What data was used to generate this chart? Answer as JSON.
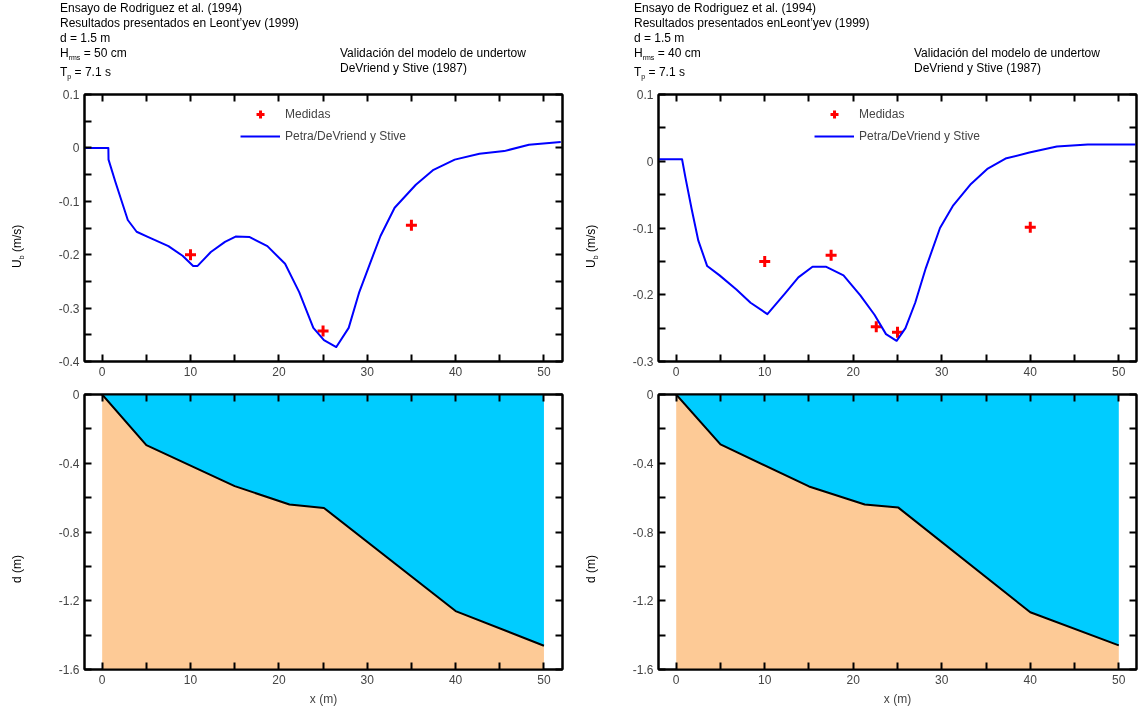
{
  "chart_data": [
    {
      "type": "line",
      "title": "Validación del modelo de undertow\nDeVriend y Stive (1987)",
      "annotations": [
        "Ensayo de Rodriguez et al. (1994)",
        "Resultados presentados en Leont’yev (1999)",
        "d = 1.5 m",
        "H$_{rms}$ = 50 cm",
        "T$_{p}$ = 7.1 s"
      ],
      "ylabel": "U$_{b}$ (m/s)",
      "legend": "top",
      "xlim": [
        -2,
        52.1
      ],
      "ylim": [
        -0.4,
        0.1
      ],
      "xticks": [
        0,
        {
          "value": 5,
          "label": null
        },
        10,
        {
          "value": 15,
          "label": null
        },
        20,
        {
          "value": 25,
          "label": null
        },
        30,
        {
          "value": 35,
          "label": null
        },
        40,
        {
          "value": 45,
          "label": null
        },
        50
      ],
      "yticks": [
        0.1,
        {
          "value": 0.05,
          "label": null
        },
        0,
        {
          "value": -0.05,
          "label": null
        },
        -0.1,
        {
          "value": -0.15,
          "label": null
        },
        -0.2,
        {
          "value": -0.25,
          "label": null
        },
        -0.3,
        {
          "value": -0.35,
          "label": null
        },
        -0.4
      ],
      "series": [
        {
          "name": "Medidas",
          "type": "scatter",
          "marker": "cross",
          "color": "#ff0000",
          "x": [
            10,
            25,
            35
          ],
          "values": [
            -0.2,
            -0.343,
            -0.145
          ]
        },
        {
          "name": "Petra/DeVriend y Stive",
          "type": "line",
          "color": "#0000ff",
          "x": [
            -2,
            0.7,
            0.72,
            1.5,
            2.9,
            3.9,
            5.1,
            7.5,
            9.1,
            10.3,
            10.8,
            12.3,
            13.9,
            15.1,
            16.7,
            18.7,
            20.7,
            22.3,
            23.9,
            25.1,
            26.5,
            27.9,
            29.1,
            30.3,
            31.5,
            33.1,
            35.5,
            37.5,
            39.9,
            42.7,
            45.5,
            48.3,
            51.9
          ],
          "values": [
            0,
            0,
            -0.022,
            -0.064,
            -0.135,
            -0.157,
            -0.166,
            -0.184,
            -0.202,
            -0.221,
            -0.221,
            -0.195,
            -0.176,
            -0.166,
            -0.167,
            -0.184,
            -0.217,
            -0.27,
            -0.337,
            -0.36,
            -0.373,
            -0.337,
            -0.27,
            -0.217,
            -0.165,
            -0.112,
            -0.069,
            -0.041,
            -0.022,
            -0.011,
            -0.006,
            0.006,
            0.011
          ]
        }
      ]
    },
    {
      "type": "line",
      "title": "Validación del modelo de undertow\nDeVriend y Stive (1987)",
      "annotations": [
        "Ensayo de Rodriguez et al. (1994)",
        "Resultados presentados enLeont’yev (1999)",
        "d = 1.5 m",
        "H$_{rms}$ = 40 cm",
        "T$_{p}$ = 7.1 s"
      ],
      "ylabel": "U$_{b}$ (m/s)",
      "legend": "top",
      "xlim": [
        -2,
        52
      ],
      "ylim": [
        -0.3,
        0.1
      ],
      "xticks": [
        0,
        {
          "value": 5,
          "label": null
        },
        10,
        {
          "value": 15,
          "label": null
        },
        20,
        {
          "value": 25,
          "label": null
        },
        30,
        {
          "value": 35,
          "label": null
        },
        40,
        {
          "value": 45,
          "label": null
        },
        50
      ],
      "yticks": [
        0.1,
        {
          "value": 0.05,
          "label": null
        },
        0,
        {
          "value": -0.05,
          "label": null
        },
        -0.1,
        {
          "value": -0.15,
          "label": null
        },
        -0.2,
        {
          "value": -0.25,
          "label": null
        },
        -0.3
      ],
      "series": [
        {
          "name": "Medidas",
          "type": "scatter",
          "marker": "cross",
          "color": "#ff0000",
          "x": [
            10,
            17.5,
            22.6,
            25,
            40
          ],
          "values": [
            -0.15,
            -0.141,
            -0.248,
            -0.256,
            -0.099
          ]
        },
        {
          "name": "Petra/DeVriend y Stive",
          "type": "line",
          "color": "#0000ff",
          "x": [
            -2,
            0.66,
            1.05,
            1.75,
            2.5,
            3.5,
            4.9,
            6.8,
            8.4,
            10.3,
            12.3,
            13.8,
            15.4,
            16.9,
            18.9,
            20.8,
            22.4,
            23.7,
            24.9,
            25.9,
            27.0,
            28.2,
            29.8,
            31.3,
            33.3,
            35.2,
            37.2,
            39.9,
            43.0,
            46.5,
            51.9
          ],
          "values": [
            0.003,
            0.003,
            -0.025,
            -0.072,
            -0.119,
            -0.157,
            -0.171,
            -0.192,
            -0.212,
            -0.229,
            -0.198,
            -0.174,
            -0.158,
            -0.158,
            -0.171,
            -0.201,
            -0.23,
            -0.259,
            -0.269,
            -0.25,
            -0.212,
            -0.16,
            -0.1,
            -0.066,
            -0.034,
            -0.011,
            0.004,
            0.013,
            0.022,
            0.025,
            0.025
          ]
        }
      ]
    },
    {
      "type": "area",
      "stacked": true,
      "xlabel": "x (m)",
      "ylabel": "d (m)",
      "xlim": [
        -2,
        52.1
      ],
      "ylim": [
        -1.6,
        0
      ],
      "xticks": [
        0,
        {
          "value": 5,
          "label": null
        },
        10,
        {
          "value": 15,
          "label": null
        },
        20,
        {
          "value": 25,
          "label": null
        },
        30,
        {
          "value": 35,
          "label": null
        },
        40,
        {
          "value": 45,
          "label": null
        },
        50
      ],
      "yticks": [
        0,
        {
          "value": -0.2,
          "label": null
        },
        -0.4,
        {
          "value": -0.6,
          "label": null
        },
        -0.8,
        {
          "value": -1.0,
          "label": null
        },
        -1.2,
        {
          "value": -1.4,
          "label": null
        },
        -1.6
      ],
      "x": [
        0,
        5,
        15,
        21.2,
        25.1,
        40,
        50
      ],
      "series": [
        {
          "color": "#00ccff",
          "values": [
            0,
            -0.295,
            -0.533,
            -0.64,
            -0.66,
            -1.26,
            -1.462
          ]
        },
        {
          "color": "#fdca96",
          "values": [
            -1.6,
            -1.305,
            -1.067,
            -0.96,
            -0.94,
            -0.34,
            -0.138
          ]
        }
      ]
    },
    {
      "type": "area",
      "stacked": true,
      "xlabel": "x (m)",
      "ylabel": "d (m)",
      "xlim": [
        -2,
        52
      ],
      "ylim": [
        -1.6,
        0
      ],
      "xticks": [
        0,
        {
          "value": 5,
          "label": null
        },
        10,
        {
          "value": 15,
          "label": null
        },
        20,
        {
          "value": 25,
          "label": null
        },
        30,
        {
          "value": 35,
          "label": null
        },
        40,
        {
          "value": 45,
          "label": null
        },
        50
      ],
      "yticks": [
        0,
        {
          "value": -0.2,
          "label": null
        },
        -0.4,
        {
          "value": -0.6,
          "label": null
        },
        -0.8,
        {
          "value": -1.0,
          "label": null
        },
        -1.2,
        {
          "value": -1.4,
          "label": null
        },
        -1.6
      ],
      "x": [
        0,
        5,
        15,
        21.3,
        25.1,
        40,
        50
      ],
      "series": [
        {
          "color": "#00ccff",
          "values": [
            0,
            -0.29,
            -0.535,
            -0.64,
            -0.658,
            -1.267,
            -1.46
          ]
        },
        {
          "color": "#fdca96",
          "values": [
            -1.6,
            -1.31,
            -1.065,
            -0.96,
            -0.942,
            -0.333,
            -0.14
          ]
        }
      ]
    }
  ]
}
